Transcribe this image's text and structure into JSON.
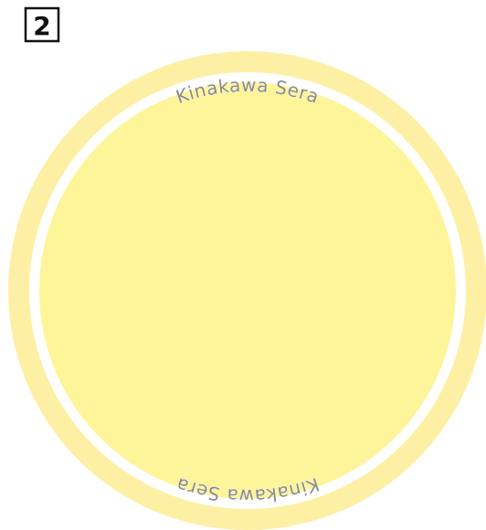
{
  "badge": "2",
  "ring_labels": [
    "Kinakawa Sera",
    "Kinakawa Sera"
  ]
}
